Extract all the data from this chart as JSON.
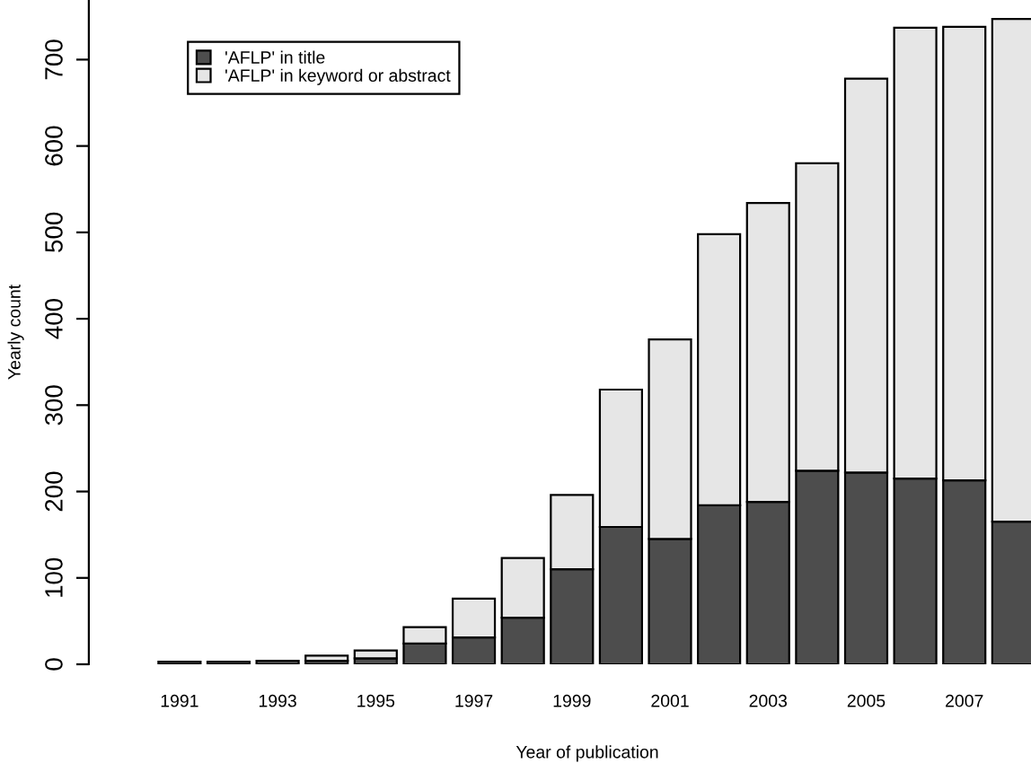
{
  "chart_data": {
    "type": "bar",
    "stacked": true,
    "xlabel": "Year of publication",
    "ylabel": "Yearly count",
    "categories": [
      "1991",
      null,
      "1993",
      null,
      "1995",
      null,
      "1997",
      null,
      "1999",
      null,
      "2001",
      null,
      "2003",
      null,
      "2005",
      null,
      "2007",
      null
    ],
    "series": [
      {
        "name": "'AFLP' in title",
        "color": "#4d4d4d",
        "values": [
          3,
          3,
          4,
          4,
          7,
          24,
          31,
          54,
          110,
          159,
          145,
          184,
          188,
          224,
          222,
          215,
          213,
          165
        ]
      },
      {
        "name": "'AFLP' in keyword or abstract",
        "color": "#e6e6e6",
        "values": [
          null,
          null,
          null,
          6,
          9,
          19,
          45,
          69,
          86,
          159,
          231,
          314,
          346,
          356,
          456,
          522,
          525,
          582
        ]
      }
    ],
    "ylim": [
      0,
      769
    ],
    "yticks": [
      0,
      100,
      200,
      300,
      400,
      500,
      600,
      700
    ],
    "legend": "top left",
    "grid": false
  }
}
